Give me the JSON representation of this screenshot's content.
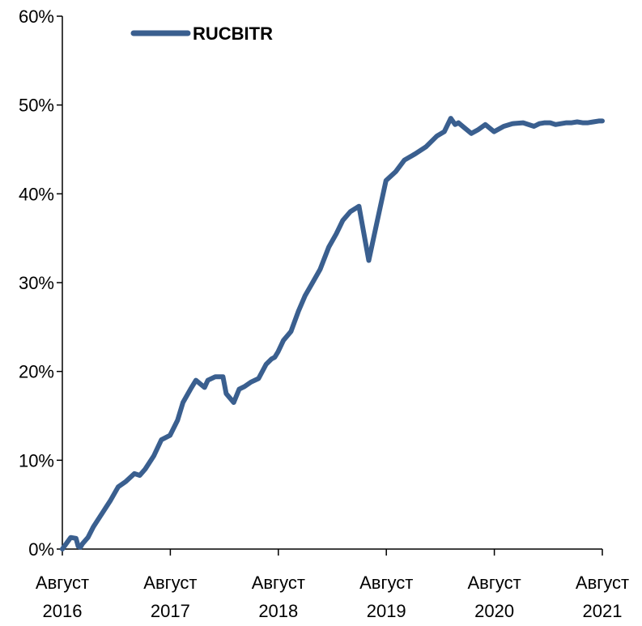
{
  "chart_data": {
    "type": "line",
    "title": "",
    "xlabel": "",
    "ylabel": "",
    "ylim": [
      0,
      60
    ],
    "xlim": [
      2016.583,
      2021.583
    ],
    "y_ticks": [
      {
        "value": 0,
        "label": "0%"
      },
      {
        "value": 10,
        "label": "10%"
      },
      {
        "value": 20,
        "label": "20%"
      },
      {
        "value": 30,
        "label": "30%"
      },
      {
        "value": 40,
        "label": "40%"
      },
      {
        "value": 50,
        "label": "50%"
      },
      {
        "value": 60,
        "label": "60%"
      }
    ],
    "x_ticks": [
      {
        "value": 2016.583,
        "line1": "Август",
        "line2": "2016"
      },
      {
        "value": 2017.583,
        "line1": "Август",
        "line2": "2017"
      },
      {
        "value": 2018.583,
        "line1": "Август",
        "line2": "2018"
      },
      {
        "value": 2019.583,
        "line1": "Август",
        "line2": "2019"
      },
      {
        "value": 2020.583,
        "line1": "Август",
        "line2": "2020"
      },
      {
        "value": 2021.583,
        "line1": "Август",
        "line2": "2021"
      }
    ],
    "grid": false,
    "legend": {
      "position": "top-left",
      "entries": [
        "RUCBITR"
      ]
    },
    "series": [
      {
        "name": "RUCBITR",
        "color": "#3a5f8f",
        "x": [
          2016.583,
          2016.66,
          2016.71,
          2016.73,
          2016.75,
          2016.77,
          2016.82,
          2016.87,
          2016.95,
          2017.03,
          2017.1,
          2017.17,
          2017.25,
          2017.3,
          2017.35,
          2017.43,
          2017.5,
          2017.58,
          2017.65,
          2017.7,
          2017.77,
          2017.82,
          2017.9,
          2017.93,
          2018.0,
          2018.07,
          2018.1,
          2018.17,
          2018.22,
          2018.27,
          2018.33,
          2018.4,
          2018.47,
          2018.52,
          2018.55,
          2018.58,
          2018.63,
          2018.7,
          2018.77,
          2018.83,
          2018.9,
          2018.97,
          2019.05,
          2019.12,
          2019.18,
          2019.25,
          2019.33,
          2019.42,
          2019.5,
          2019.58,
          2019.67,
          2019.75,
          2019.85,
          2019.95,
          2020.05,
          2020.12,
          2020.18,
          2020.22,
          2020.25,
          2020.3,
          2020.37,
          2020.43,
          2020.5,
          2020.58,
          2020.67,
          2020.75,
          2020.85,
          2020.95,
          2021.0,
          2021.05,
          2021.1,
          2021.15,
          2021.2,
          2021.25,
          2021.3,
          2021.35,
          2021.4,
          2021.45,
          2021.5,
          2021.55,
          2021.583
        ],
        "values": [
          0.0,
          1.3,
          1.2,
          0.3,
          0.2,
          0.6,
          1.3,
          2.5,
          4.0,
          5.5,
          7.0,
          7.6,
          8.5,
          8.3,
          9.0,
          10.5,
          12.3,
          12.8,
          14.5,
          16.5,
          18.0,
          19.0,
          18.2,
          19.0,
          19.4,
          19.4,
          17.5,
          16.5,
          18.0,
          18.3,
          18.8,
          19.2,
          20.8,
          21.4,
          21.6,
          22.2,
          23.5,
          24.5,
          26.8,
          28.5,
          30.0,
          31.5,
          34.0,
          35.5,
          37.0,
          38.0,
          38.6,
          32.5,
          37.0,
          41.5,
          42.5,
          43.8,
          44.5,
          45.3,
          46.5,
          47.0,
          48.5,
          47.8,
          48.0,
          47.5,
          46.8,
          47.2,
          47.8,
          47.0,
          47.6,
          47.9,
          48.0,
          47.6,
          47.9,
          48.0,
          48.0,
          47.8,
          47.9,
          48.0,
          48.0,
          48.1,
          48.0,
          48.0,
          48.1,
          48.2,
          48.2
        ]
      }
    ]
  }
}
